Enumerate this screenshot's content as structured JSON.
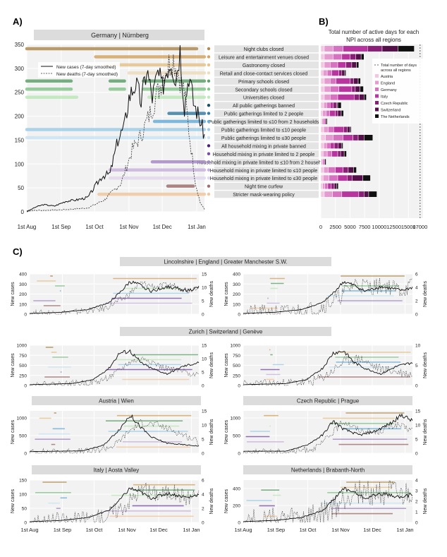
{
  "panel_labels": {
    "a": "A)",
    "b": "B)",
    "c": "C)"
  },
  "colors": {
    "strip": "#dcdcdc",
    "panel_bg": "#f2f2f2",
    "grid": "#ffffff",
    "line": "#111111"
  },
  "npis": [
    {
      "label": "Night clubs closed",
      "color": "#b08c52"
    },
    {
      "label": "Leisure and entertainment venues closed",
      "color": "#d4a664"
    },
    {
      "label": "Gastronomy closed",
      "color": "#e6c48c"
    },
    {
      "label": "Retail and close-contact services closed",
      "color": "#eedcbc"
    },
    {
      "label": "Primary schools closed",
      "color": "#5fa36a"
    },
    {
      "label": "Secondary schools closed",
      "color": "#86c68d"
    },
    {
      "label": "Universities closed",
      "color": "#bde8b9"
    },
    {
      "label": "All public gatherings banned",
      "color": "#1c4f6e"
    },
    {
      "label": "Public gatherings limited to 2 people",
      "color": "#3b7fa6"
    },
    {
      "label": "Public gatherings limited to ≤10 from 2 households",
      "color": "#6aaed6"
    },
    {
      "label": "Public gatherings limited to ≤10 people",
      "color": "#9fcde8"
    },
    {
      "label": "Public gatherings limited to ≤30 people",
      "color": "#cbe5f3"
    },
    {
      "label": "All household mixing in private banned",
      "color": "#4a2378"
    },
    {
      "label": "Household mixing in private limited to 2 people",
      "color": "#7b4fa5"
    },
    {
      "label": "Household mixing in private limited to ≤10 from 2 households",
      "color": "#a78bc8"
    },
    {
      "label": "Household mixing in private limited to ≤10 people",
      "color": "#c9b3de"
    },
    {
      "label": "Household mixing in private limited to ≤30 people",
      "color": "#e3d8ef"
    },
    {
      "label": "Night time curfew",
      "color": "#a07070"
    },
    {
      "label": "Stricter mask-wearing policy",
      "color": "#f0c8a0"
    }
  ],
  "chart_data": [
    {
      "type": "line",
      "panel": "A",
      "strip": {
        "country": "Germany",
        "region": "Nürnberg"
      },
      "x_ticks": [
        "1st Aug",
        "1st Sep",
        "1st Oct",
        "1st Nov",
        "1st Dec",
        "1st Jan"
      ],
      "ylim": [
        0,
        350
      ],
      "y_ticks": [
        "0",
        "50",
        "100",
        "150",
        "200",
        "250",
        "300",
        "350"
      ],
      "legend": [
        "New cases (7-day smoothed)",
        "New deaths (7-day smoothed)"
      ],
      "cases_keypoints": [
        [
          0,
          0
        ],
        [
          8,
          10
        ],
        [
          15,
          15
        ],
        [
          25,
          12
        ],
        [
          35,
          22
        ],
        [
          45,
          25
        ],
        [
          55,
          30
        ],
        [
          62,
          55
        ],
        [
          68,
          75
        ],
        [
          75,
          80
        ],
        [
          82,
          150
        ],
        [
          88,
          180
        ],
        [
          92,
          240
        ],
        [
          98,
          270
        ],
        [
          103,
          230
        ],
        [
          108,
          300
        ],
        [
          113,
          240
        ],
        [
          118,
          290
        ],
        [
          122,
          260
        ],
        [
          126,
          300
        ],
        [
          130,
          320
        ],
        [
          134,
          280
        ],
        [
          138,
          340
        ],
        [
          142,
          220
        ],
        [
          146,
          290
        ],
        [
          150,
          230
        ],
        [
          155,
          200
        ],
        [
          160,
          160
        ]
      ],
      "deaths_keypoints": [
        [
          0,
          2
        ],
        [
          10,
          3
        ],
        [
          30,
          4
        ],
        [
          55,
          8
        ],
        [
          70,
          25
        ],
        [
          85,
          60
        ],
        [
          95,
          130
        ],
        [
          103,
          160
        ],
        [
          110,
          200
        ],
        [
          118,
          250
        ],
        [
          125,
          300
        ],
        [
          132,
          320
        ],
        [
          138,
          280
        ],
        [
          142,
          250
        ],
        [
          147,
          150
        ],
        [
          152,
          60
        ],
        [
          156,
          20
        ],
        [
          160,
          5
        ]
      ]
    },
    {
      "type": "bar",
      "panel": "B",
      "title": "Total number of active days for each NPI across all regions",
      "x_ticks": [
        "0",
        "2500",
        "5000",
        "7500",
        "10000",
        "12500",
        "15000",
        "17000"
      ],
      "xlim": [
        0,
        17500
      ],
      "dashed_line": 17000,
      "legend_title": "Total number of days across all regions",
      "regions": [
        {
          "name": "Austria",
          "color": "#f4c6e2"
        },
        {
          "name": "England",
          "color": "#e49bd0"
        },
        {
          "name": "Germany",
          "color": "#d672bf"
        },
        {
          "name": "Italy",
          "color": "#b8359f"
        },
        {
          "name": "Czech Republic",
          "color": "#8a1f77"
        },
        {
          "name": "Switzerland",
          "color": "#55104a"
        },
        {
          "name": "The Netherlands",
          "color": "#111111"
        }
      ],
      "values": [
        [
          600,
          1500,
          1700,
          4200,
          2500,
          2700,
          2800
        ],
        [
          600,
          1500,
          1500,
          1400,
          1000,
          900,
          500
        ],
        [
          600,
          1000,
          1300,
          1400,
          1000,
          800,
          400
        ],
        [
          400,
          700,
          800,
          1200,
          500,
          500,
          200
        ],
        [
          600,
          1000,
          1000,
          2400,
          600,
          800,
          400
        ],
        [
          600,
          1000,
          1500,
          2200,
          600,
          800,
          600
        ],
        [
          600,
          1000,
          1300,
          2800,
          900,
          800,
          400
        ],
        [
          500,
          500,
          600,
          500,
          600,
          200,
          600
        ],
        [
          300,
          600,
          600,
          1000,
          400,
          600,
          400
        ],
        [
          200,
          200,
          300,
          200,
          0,
          0,
          200
        ],
        [
          500,
          800,
          900,
          1700,
          600,
          500,
          200
        ],
        [
          800,
          1300,
          1700,
          1700,
          900,
          1000,
          1500
        ],
        [
          500,
          500,
          600,
          700,
          700,
          600,
          200
        ],
        [
          400,
          700,
          800,
          1000,
          500,
          600,
          400
        ],
        [
          100,
          200,
          200,
          200,
          0,
          0,
          200
        ],
        [
          500,
          800,
          1200,
          1300,
          900,
          900,
          500
        ],
        [
          400,
          1000,
          1500,
          1600,
          900,
          1800,
          1300
        ],
        [
          300,
          400,
          500,
          600,
          500,
          400,
          300
        ],
        [
          600,
          1400,
          1600,
          2900,
          900,
          800,
          1400
        ]
      ]
    },
    {
      "type": "line",
      "panel": "C",
      "strip": {
        "country": "England",
        "left_region": "Lincolnshire",
        "right_region": "Greater Manchester S.W."
      },
      "x_ticks": [
        "1st Aug",
        "1st Sep",
        "1st Oct",
        "1st Nov",
        "1st Dec",
        "1st Jan"
      ],
      "subplots": [
        {
          "region": "Lincolnshire",
          "ylim_cases": [
            0,
            400
          ],
          "y_ticks_cases": [
            "0",
            "100",
            "200",
            "300",
            "400"
          ],
          "ylim_deaths": [
            0,
            15
          ],
          "y_ticks_deaths": [
            "0",
            "5",
            "10",
            "15"
          ]
        },
        {
          "region": "Greater Manchester S.W.",
          "ylim_cases": [
            0,
            400
          ],
          "y_ticks_cases": [
            "0",
            "100",
            "200",
            "300",
            "400"
          ],
          "ylim_deaths": [
            0,
            6
          ],
          "y_ticks_deaths": [
            "0",
            "2",
            "4",
            "6"
          ]
        }
      ]
    },
    {
      "type": "line",
      "panel": "C",
      "strip": {
        "country": "Switzerland",
        "left_region": "Zurich",
        "right_region": "Genève"
      },
      "x_ticks": [
        "1st Aug",
        "1st Sep",
        "1st Oct",
        "1st Nov",
        "1st Dec",
        "1st Jan"
      ],
      "subplots": [
        {
          "region": "Zurich",
          "ylim_cases": [
            0,
            1000
          ],
          "y_ticks_cases": [
            "0",
            "250",
            "500",
            "750",
            "1000"
          ],
          "ylim_deaths": [
            0,
            15
          ],
          "y_ticks_deaths": [
            "0",
            "5",
            "10",
            "15"
          ]
        },
        {
          "region": "Genève",
          "ylim_cases": [
            0,
            1000
          ],
          "y_ticks_cases": [
            "0",
            "250",
            "500",
            "750",
            "1000"
          ],
          "ylim_deaths": [
            0,
            10
          ],
          "y_ticks_deaths": [
            "0",
            "5",
            "10"
          ]
        }
      ]
    },
    {
      "type": "line",
      "panel": "C",
      "strip": {
        "country": "Austria",
        "left_region": "",
        "right_region": "Wien"
      },
      "x_ticks": [
        "1st Aug",
        "1st Sep",
        "1st Oct",
        "1st Nov",
        "1st Dec",
        "1st Jan"
      ],
      "subplots": [
        {
          "region": "Wien",
          "ylim_cases": [
            0,
            1200
          ],
          "y_ticks_cases": [
            "0",
            "500",
            "1000"
          ],
          "ylim_deaths": [
            0,
            15
          ],
          "y_ticks_deaths": [
            "0",
            "5",
            "10",
            "15"
          ]
        }
      ]
    },
    {
      "type": "line",
      "panel": "C",
      "strip": {
        "country": "Czech Republic",
        "left_region": "",
        "right_region": "Prague"
      },
      "x_ticks": [
        "1st Aug",
        "1st Sep",
        "1st Oct",
        "1st Nov",
        "1st Dec",
        "1st Jan"
      ],
      "subplots": [
        {
          "region": "Prague",
          "ylim_cases": [
            0,
            1200
          ],
          "y_ticks_cases": [
            "0",
            "500",
            "1000"
          ],
          "ylim_deaths": [
            0,
            15
          ],
          "y_ticks_deaths": [
            "0",
            "5",
            "10",
            "15"
          ]
        }
      ]
    },
    {
      "type": "line",
      "panel": "C",
      "strip": {
        "country": "Italy",
        "left_region": "",
        "right_region": "Aosta Valley"
      },
      "x_ticks": [
        "1st Aug",
        "1st Sep",
        "1st Oct",
        "1st Nov",
        "1st Dec",
        "1st Jan"
      ],
      "subplots": [
        {
          "region": "Aosta Valley",
          "ylim_cases": [
            0,
            150
          ],
          "y_ticks_cases": [
            "0",
            "50",
            "100",
            "150"
          ],
          "ylim_deaths": [
            0,
            6
          ],
          "y_ticks_deaths": [
            "0",
            "2",
            "4",
            "6"
          ]
        }
      ]
    },
    {
      "type": "line",
      "panel": "C",
      "strip": {
        "country": "Netherlands",
        "left_region": "",
        "right_region": "Brabanth-North"
      },
      "x_ticks": [
        "1st Aug",
        "1st Sep",
        "1st Oct",
        "1st Nov",
        "1st Dec",
        "1st Jan"
      ],
      "subplots": [
        {
          "region": "Brabanth-North",
          "ylim_cases": [
            0,
            500
          ],
          "y_ticks_cases": [
            "0",
            "200",
            "400"
          ],
          "ylim_deaths": [
            0,
            4
          ],
          "y_ticks_deaths": [
            "0",
            "1",
            "2",
            "3",
            "4"
          ]
        }
      ]
    }
  ],
  "axis_labels": {
    "cases": "New cases",
    "deaths": "New deaths"
  }
}
